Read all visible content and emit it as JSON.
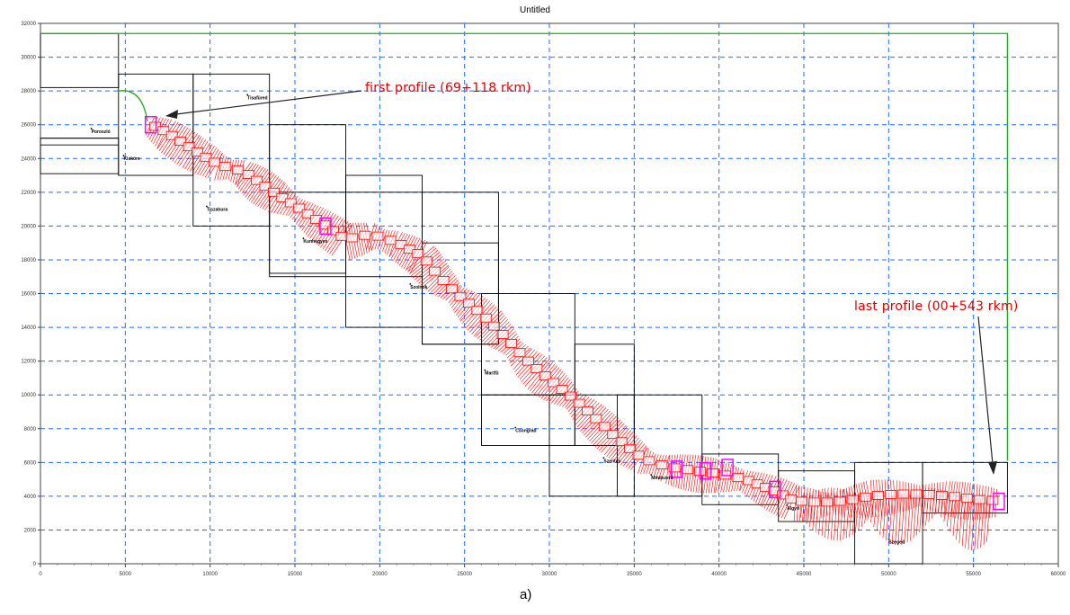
{
  "title": "Untitled",
  "caption": "a)",
  "annotations": {
    "first_profile": "first profile (69+118 rkm)",
    "last_profile": "last profile (00+543 rkm)"
  },
  "colors": {
    "grid": "#1e6bff",
    "profiles": "#ff0000",
    "river": "#22aa22",
    "tiles": "#000000",
    "highlight": "#ff00ff",
    "annotation": "#e00000"
  },
  "axes": {
    "x_ticks": [
      "0",
      "5000",
      "10000",
      "15000",
      "20000",
      "25000",
      "30000",
      "35000",
      "40000",
      "45000",
      "50000",
      "55000",
      "60000"
    ],
    "y_ticks": [
      "0",
      "2000",
      "4000",
      "6000",
      "8000",
      "10000",
      "12000",
      "14000",
      "16000",
      "18000",
      "20000",
      "22000",
      "24000",
      "26000",
      "28000",
      "30000",
      "32000"
    ],
    "x_range": [
      0,
      60000
    ],
    "y_range": [
      0,
      32000
    ]
  },
  "place_labels": [
    "Tisafüred",
    "Poroszló",
    "Kisköre",
    "Tiszabura",
    "Kunhegyes",
    "Szolnok",
    "Martfű",
    "Csongrád",
    "Szentes",
    "Mindszent",
    "Algyő",
    "Szeged"
  ]
}
